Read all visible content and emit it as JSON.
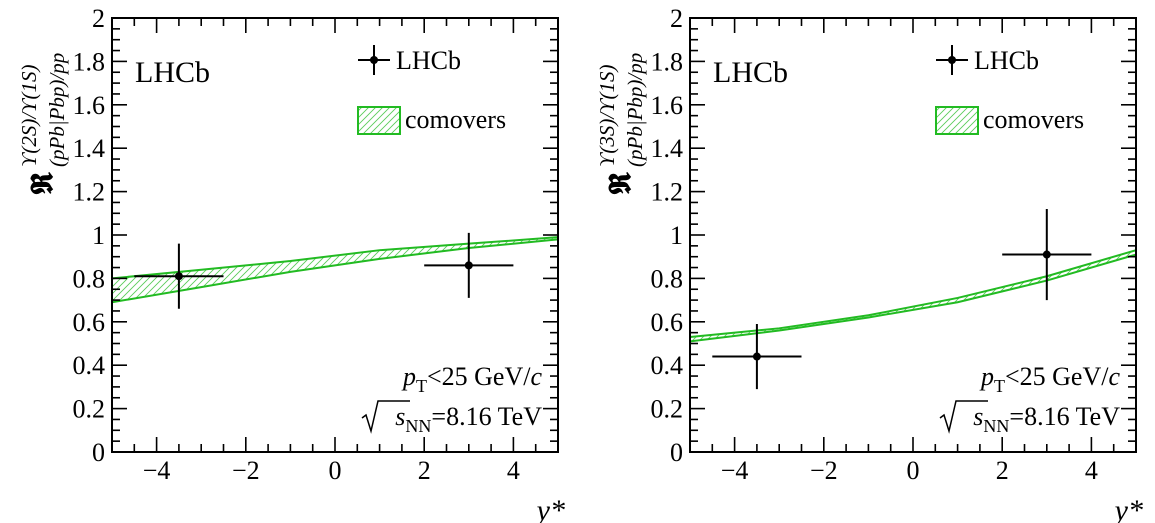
{
  "chart_data": [
    {
      "type": "line",
      "experiment_label": "LHCb",
      "ylabel": {
        "main": "𝕽",
        "superscript": "ϒ(2S)/ϒ(1S)",
        "subscript": "(pPb|Pbp)/pp"
      },
      "xlabel": "y*",
      "xlim": [
        -5,
        5
      ],
      "ylim": [
        0,
        2
      ],
      "x_ticks": [
        -4,
        -2,
        0,
        2,
        4
      ],
      "y_ticks": [
        0,
        0.2,
        0.4,
        0.6,
        0.8,
        1,
        1.2,
        1.4,
        1.6,
        1.8,
        2
      ],
      "x_tick_labels": [
        "−4",
        "−2",
        "0",
        "2",
        "4"
      ],
      "y_tick_labels": [
        "0",
        "0.2",
        "0.4",
        "0.6",
        "0.8",
        "1",
        "1.2",
        "1.4",
        "1.6",
        "1.8",
        "2"
      ],
      "legend_placement": "top-right",
      "legend": [
        {
          "label": "LHCb",
          "kind": "point-with-errors",
          "color": "#000000"
        },
        {
          "label": "comovers",
          "kind": "hatched-band",
          "color": "#22bb22"
        }
      ],
      "points": [
        {
          "x": -3.5,
          "y": 0.81,
          "xerr": 1.0,
          "yerr": 0.15
        },
        {
          "x": 3.0,
          "y": 0.86,
          "xerr": 1.0,
          "yerr": 0.15
        }
      ],
      "band": {
        "name": "comovers",
        "x": [
          -5,
          -3,
          -1,
          1,
          3,
          5
        ],
        "lower": [
          0.69,
          0.76,
          0.83,
          0.89,
          0.94,
          0.98
        ],
        "upper": [
          0.8,
          0.84,
          0.88,
          0.93,
          0.96,
          0.99
        ]
      },
      "conditions": {
        "pt": {
          "var": "p",
          "sub": "T",
          "rest": "<25 GeV/",
          "unit": "c"
        },
        "sqrts": {
          "sub": "NN",
          "rest": "=8.16 TeV"
        }
      }
    },
    {
      "type": "line",
      "experiment_label": "LHCb",
      "ylabel": {
        "main": "𝕽",
        "superscript": "ϒ(3S)/ϒ(1S)",
        "subscript": "(pPb|Pbp)/pp"
      },
      "xlabel": "y*",
      "xlim": [
        -5,
        5
      ],
      "ylim": [
        0,
        2
      ],
      "x_ticks": [
        -4,
        -2,
        0,
        2,
        4
      ],
      "y_ticks": [
        0,
        0.2,
        0.4,
        0.6,
        0.8,
        1,
        1.2,
        1.4,
        1.6,
        1.8,
        2
      ],
      "x_tick_labels": [
        "−4",
        "−2",
        "0",
        "2",
        "4"
      ],
      "y_tick_labels": [
        "0",
        "0.2",
        "0.4",
        "0.6",
        "0.8",
        "1",
        "1.2",
        "1.4",
        "1.6",
        "1.8",
        "2"
      ],
      "legend_placement": "top-right",
      "legend": [
        {
          "label": "LHCb",
          "kind": "point-with-errors",
          "color": "#000000"
        },
        {
          "label": "comovers",
          "kind": "hatched-band",
          "color": "#22bb22"
        }
      ],
      "points": [
        {
          "x": -3.5,
          "y": 0.44,
          "xerr": 1.0,
          "yerr": 0.15
        },
        {
          "x": 3.0,
          "y": 0.91,
          "xerr": 1.0,
          "yerr": 0.21
        }
      ],
      "band": {
        "name": "comovers",
        "x": [
          -5,
          -3,
          -1,
          1,
          3,
          5
        ],
        "lower": [
          0.51,
          0.56,
          0.62,
          0.69,
          0.79,
          0.91
        ],
        "upper": [
          0.53,
          0.57,
          0.63,
          0.71,
          0.81,
          0.93
        ]
      },
      "conditions": {
        "pt": {
          "var": "p",
          "sub": "T",
          "rest": "<25 GeV/",
          "unit": "c"
        },
        "sqrts": {
          "sub": "NN",
          "rest": "=8.16 TeV"
        }
      }
    }
  ]
}
